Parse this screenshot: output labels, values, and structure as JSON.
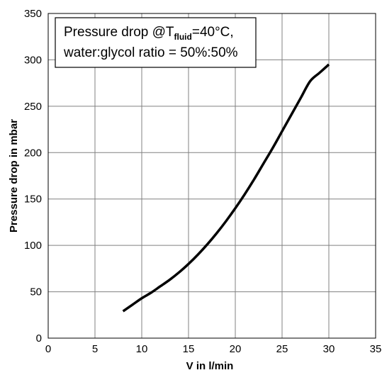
{
  "chart_data": {
    "type": "line",
    "xlabel": "V in l/min",
    "ylabel": "Pressure drop in mbar",
    "xlim": [
      0,
      35
    ],
    "ylim": [
      0,
      350
    ],
    "x_ticks": [
      0,
      5,
      10,
      15,
      20,
      25,
      30,
      35
    ],
    "y_ticks": [
      0,
      50,
      100,
      150,
      200,
      250,
      300,
      350
    ],
    "grid": true,
    "series": [
      {
        "x": [
          8,
          9,
          10,
          11,
          12,
          13,
          14,
          15,
          16,
          17,
          18,
          19,
          20,
          21,
          22,
          23,
          24,
          25,
          26,
          27,
          28,
          29,
          30
        ],
        "y": [
          29,
          36,
          43,
          49,
          56,
          63,
          71,
          80,
          90,
          101,
          113,
          126,
          140,
          155,
          171,
          188,
          205,
          223,
          241,
          259,
          277,
          286,
          295
        ]
      }
    ],
    "annotation": {
      "line1_prefix": "Pressure drop @T",
      "line1_subscript": "fluid",
      "line1_suffix": "=40°C,",
      "line2": "water:glycol ratio = 50%:50%"
    },
    "colors": {
      "line": "#000000",
      "grid": "#808080",
      "background": "#ffffff"
    }
  }
}
